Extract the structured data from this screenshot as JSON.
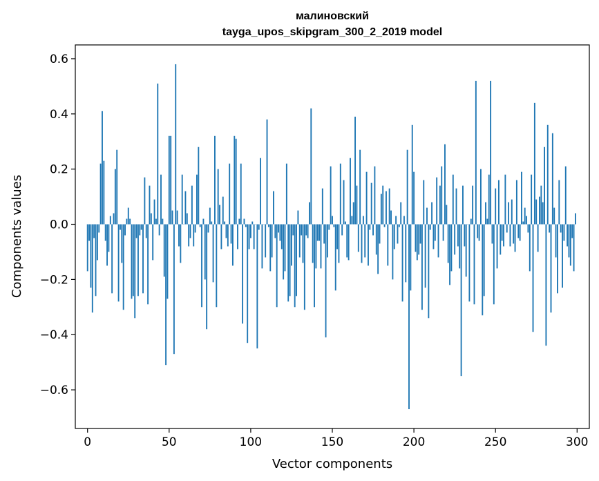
{
  "chart_data": {
    "type": "bar",
    "title": [
      "малиновский",
      "tayga_upos_skipgram_300_2_2019 model"
    ],
    "xlabel": "Vector components",
    "ylabel": "Components values",
    "xlim": [
      -7.5,
      307.5
    ],
    "ylim": [
      -0.74,
      0.65
    ],
    "xticks": [
      0,
      50,
      100,
      150,
      200,
      250,
      300
    ],
    "xtick_labels": [
      "0",
      "50",
      "100",
      "150",
      "200",
      "250",
      "300"
    ],
    "yticks": [
      -0.6,
      -0.4,
      -0.2,
      0.0,
      0.2,
      0.4,
      0.6
    ],
    "ytick_labels": [
      "−0.6",
      "−0.4",
      "−0.2",
      "0.0",
      "0.2",
      "0.4",
      "0.6"
    ],
    "bar_color": "#1f77b4",
    "x": "0..299 (component index)",
    "values": [
      -0.17,
      -0.06,
      -0.23,
      -0.32,
      -0.05,
      -0.26,
      -0.13,
      -0.03,
      0.22,
      0.41,
      0.23,
      -0.06,
      -0.15,
      -0.1,
      0.03,
      -0.25,
      0.04,
      0.2,
      0.27,
      -0.28,
      -0.02,
      -0.14,
      -0.31,
      -0.04,
      0.02,
      0.06,
      0.02,
      -0.27,
      -0.26,
      -0.34,
      -0.05,
      -0.26,
      -0.04,
      -0.02,
      -0.25,
      0.17,
      -0.05,
      -0.29,
      0.14,
      0.04,
      -0.13,
      0.09,
      0.02,
      0.51,
      -0.04,
      0.18,
      0.02,
      -0.19,
      -0.51,
      -0.27,
      0.32,
      0.32,
      0.05,
      -0.47,
      0.58,
      0.05,
      -0.08,
      -0.14,
      0.18,
      0.0,
      0.12,
      0.04,
      -0.08,
      -0.05,
      0.14,
      -0.08,
      -0.03,
      0.18,
      0.28,
      -0.01,
      -0.3,
      0.02,
      -0.2,
      -0.38,
      -0.03,
      0.06,
      0.01,
      -0.21,
      0.32,
      -0.3,
      0.2,
      0.07,
      -0.09,
      0.1,
      0.01,
      -0.05,
      -0.08,
      0.22,
      -0.07,
      -0.15,
      0.32,
      0.31,
      -0.09,
      0.02,
      0.22,
      -0.36,
      0.02,
      -0.01,
      -0.43,
      -0.09,
      -0.05,
      0.01,
      -0.09,
      0.0,
      -0.45,
      -0.02,
      0.24,
      -0.16,
      0.0,
      -0.12,
      0.38,
      -0.01,
      -0.17,
      -0.12,
      0.12,
      -0.05,
      -0.3,
      -0.03,
      -0.06,
      -0.09,
      -0.2,
      -0.17,
      0.22,
      -0.28,
      -0.26,
      -0.15,
      -0.04,
      -0.3,
      -0.26,
      0.05,
      -0.12,
      -0.04,
      -0.14,
      -0.31,
      -0.04,
      -0.05,
      0.08,
      0.42,
      -0.14,
      -0.3,
      -0.16,
      -0.06,
      -0.06,
      -0.16,
      0.13,
      -0.07,
      -0.41,
      -0.12,
      -0.02,
      0.21,
      0.03,
      -0.01,
      -0.24,
      -0.09,
      -0.14,
      0.22,
      -0.04,
      0.16,
      0.01,
      -0.12,
      -0.13,
      0.24,
      0.03,
      0.08,
      0.39,
      0.14,
      -0.1,
      0.27,
      -0.14,
      0.03,
      -0.12,
      0.19,
      -0.15,
      -0.02,
      0.15,
      -0.04,
      0.21,
      -0.11,
      -0.18,
      -0.07,
      0.11,
      0.14,
      -0.01,
      0.12,
      -0.15,
      0.13,
      0.05,
      -0.2,
      -0.09,
      0.03,
      -0.07,
      -0.01,
      0.08,
      -0.28,
      0.03,
      -0.21,
      0.27,
      -0.67,
      -0.24,
      0.36,
      0.19,
      -0.1,
      -0.13,
      -0.11,
      -0.07,
      -0.31,
      0.16,
      -0.23,
      0.06,
      -0.34,
      -0.02,
      0.08,
      -0.09,
      -0.06,
      0.17,
      -0.12,
      0.14,
      0.21,
      -0.06,
      0.29,
      0.07,
      -0.14,
      -0.22,
      -0.17,
      0.18,
      -0.11,
      0.13,
      -0.08,
      -0.16,
      -0.55,
      0.14,
      -0.08,
      -0.19,
      0.0,
      -0.28,
      0.02,
      0.14,
      -0.29,
      0.52,
      -0.05,
      -0.06,
      0.2,
      -0.33,
      -0.26,
      0.08,
      0.02,
      0.18,
      0.52,
      -0.07,
      -0.29,
      0.13,
      -0.16,
      0.16,
      -0.11,
      -0.06,
      -0.08,
      0.18,
      -0.03,
      0.08,
      -0.08,
      0.09,
      -0.07,
      -0.1,
      0.16,
      -0.05,
      -0.06,
      0.19,
      0.01,
      0.06,
      0.03,
      -0.03,
      -0.17,
      0.18,
      -0.39,
      0.44,
      0.09,
      -0.1,
      0.1,
      0.14,
      0.08,
      0.28,
      -0.44,
      0.36,
      -0.03,
      -0.32,
      0.33,
      0.06,
      -0.12,
      -0.25,
      0.16,
      -0.03,
      -0.23,
      -0.06,
      0.21,
      -0.08,
      -0.12,
      -0.15,
      -0.05,
      -0.17,
      0.04
    ]
  }
}
